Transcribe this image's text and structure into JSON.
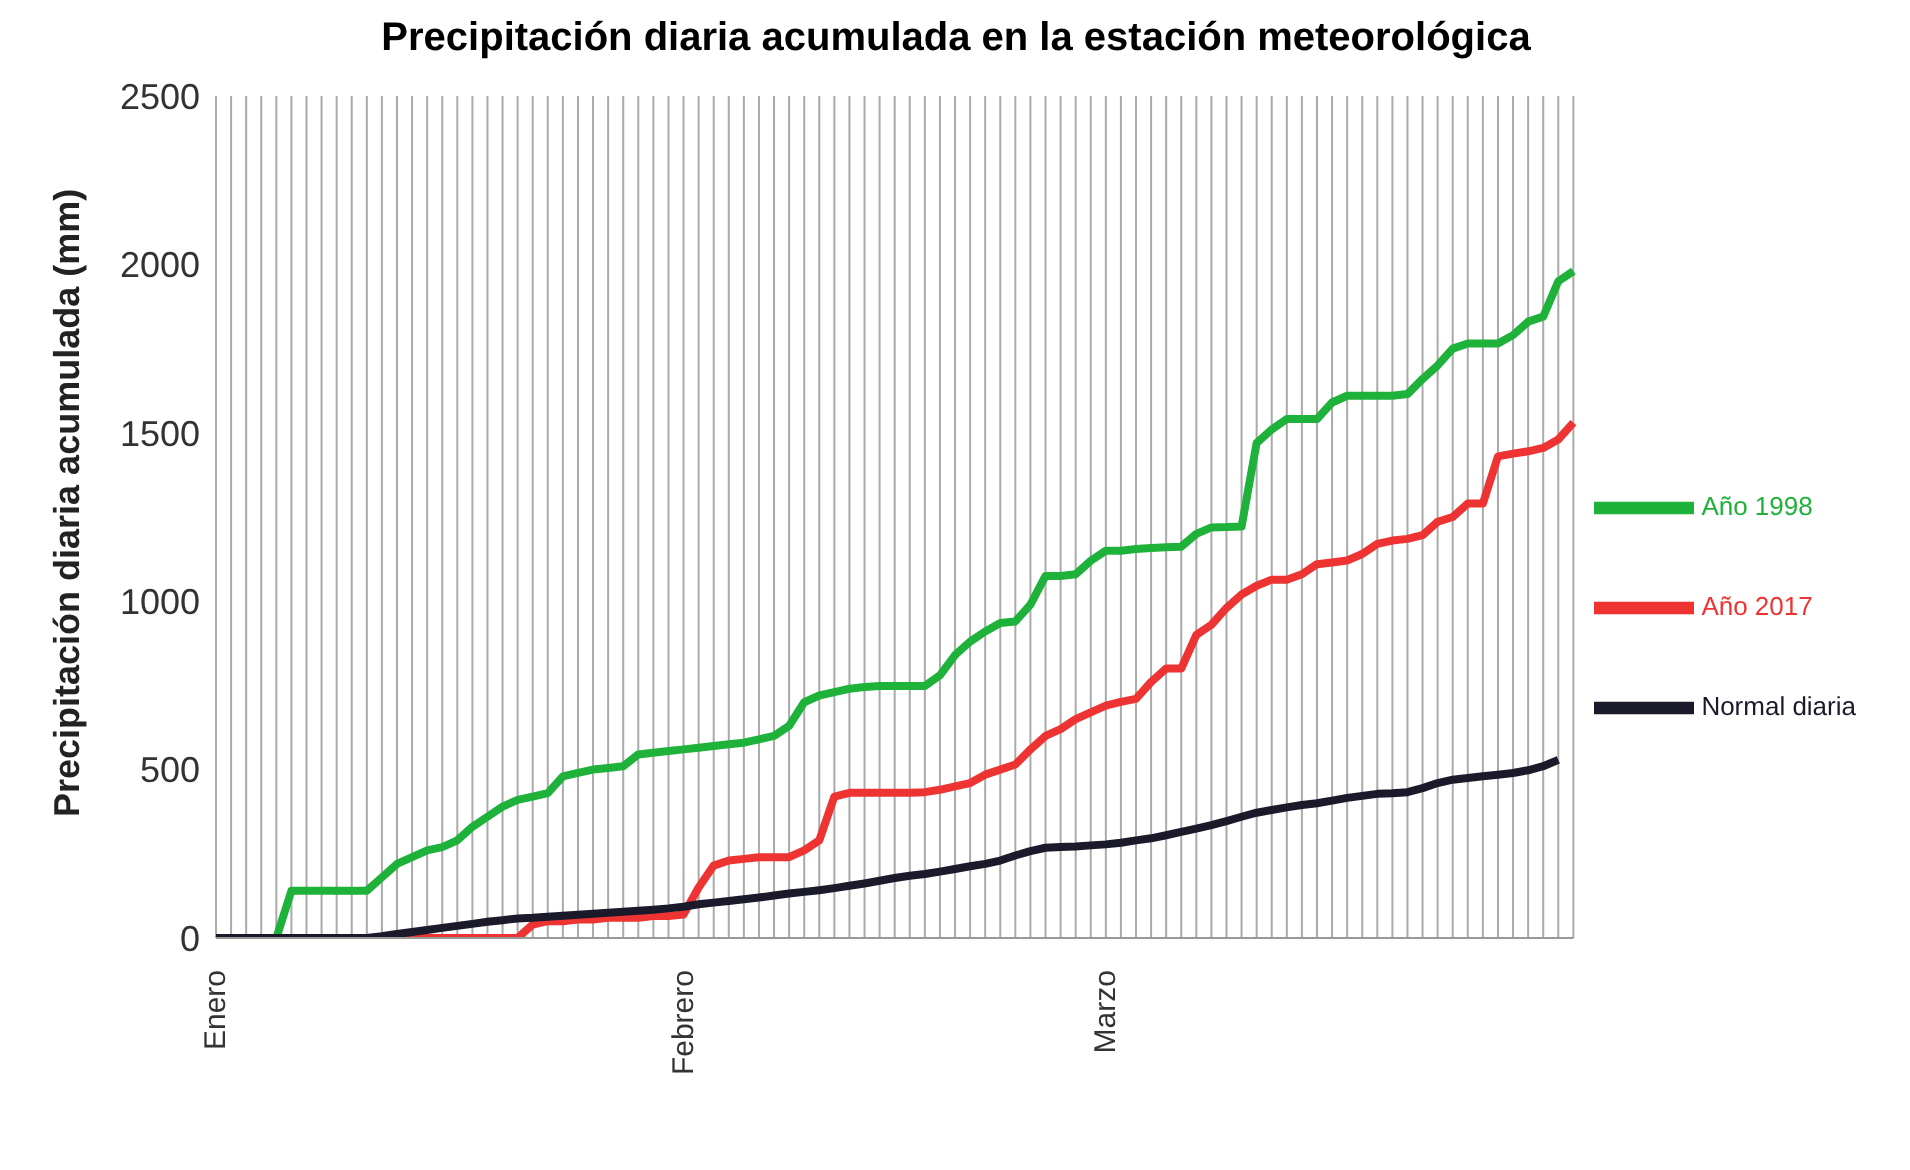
{
  "chart_data": {
    "type": "line",
    "title": "Precipitación diaria acumulada en la estación meteorológica",
    "ylabel": "Precipitación diaria acumulada (mm)",
    "categories": [
      "Enero",
      null,
      null,
      null,
      null,
      null,
      null,
      null,
      null,
      null,
      null,
      null,
      null,
      null,
      null,
      null,
      null,
      null,
      null,
      null,
      null,
      null,
      null,
      null,
      null,
      null,
      null,
      null,
      null,
      null,
      null,
      "Febrero",
      null,
      null,
      null,
      null,
      null,
      null,
      null,
      null,
      null,
      null,
      null,
      null,
      null,
      null,
      null,
      null,
      null,
      null,
      null,
      null,
      null,
      null,
      null,
      null,
      null,
      null,
      null,
      "Marzo",
      null,
      null,
      null,
      null,
      null,
      null,
      null,
      null,
      null,
      null,
      null,
      null,
      null,
      null,
      null,
      null,
      null,
      null,
      null,
      null,
      null,
      null,
      null,
      null,
      null,
      null,
      null,
      null,
      null,
      null,
      null
    ],
    "series": [
      {
        "name": "Año 1998",
        "color": "#1fb23a",
        "values": [
          null,
          null,
          null,
          null,
          0,
          140,
          140,
          140,
          140,
          140,
          140,
          180,
          220,
          240,
          260,
          270,
          290,
          330,
          360,
          390,
          410,
          420,
          430,
          480,
          490,
          500,
          505,
          510,
          545,
          550,
          555,
          560,
          565,
          570,
          575,
          580,
          590,
          600,
          630,
          700,
          720,
          730,
          740,
          745,
          748,
          748,
          748,
          748,
          780,
          840,
          880,
          910,
          935,
          940,
          990,
          1075,
          1075,
          1080,
          1120,
          1150,
          1150,
          1155,
          1158,
          1160,
          1162,
          1200,
          1219,
          1220,
          1222,
          1470,
          1510,
          1541,
          1541,
          1541,
          1590,
          1610,
          1610,
          1610,
          1610,
          1615,
          1660,
          1700,
          1750,
          1765,
          1765,
          1765,
          1790,
          1830,
          1845,
          1950,
          1980
        ]
      },
      {
        "name": "Año 2017",
        "color": "#ee3333",
        "values": [
          null,
          null,
          null,
          null,
          null,
          null,
          null,
          null,
          null,
          null,
          null,
          0,
          0,
          0,
          0,
          0,
          0,
          0,
          0,
          0,
          0,
          40,
          50,
          50,
          55,
          55,
          60,
          60,
          60,
          65,
          65,
          70,
          150,
          215,
          230,
          235,
          240,
          240,
          240,
          260,
          290,
          420,
          431,
          431,
          431,
          431,
          431,
          433,
          440,
          450,
          460,
          485,
          500,
          515,
          560,
          600,
          620,
          650,
          670,
          690,
          701,
          710,
          760,
          800,
          800,
          900,
          930,
          980,
          1020,
          1046,
          1064,
          1064,
          1080,
          1110,
          1115,
          1121,
          1140,
          1170,
          1180,
          1185,
          1196,
          1236,
          1250,
          1290,
          1290,
          1430,
          1438,
          1445,
          1455,
          1480,
          1530
        ]
      },
      {
        "name": "Normal diaria",
        "color": "#1a1a2a",
        "values": [
          0,
          0,
          0,
          0,
          0,
          0,
          0,
          0,
          0,
          0,
          0,
          5,
          12,
          18,
          24,
          30,
          36,
          42,
          48,
          53,
          58,
          60,
          63,
          66,
          69,
          72,
          75,
          78,
          81,
          84,
          88,
          93,
          100,
          105,
          110,
          115,
          120,
          126,
          132,
          137,
          142,
          148,
          155,
          162,
          170,
          178,
          185,
          190,
          197,
          205,
          213,
          220,
          230,
          245,
          258,
          268,
          270,
          272,
          275,
          278,
          283,
          290,
          296,
          305,
          315,
          325,
          335,
          347,
          360,
          372,
          380,
          388,
          395,
          400,
          408,
          416,
          422,
          428,
          430,
          433,
          445,
          460,
          470,
          475,
          480,
          485,
          490,
          498,
          510,
          529,
          null
        ]
      }
    ],
    "ylim": [
      0,
      2500
    ],
    "yticks": [
      0,
      500,
      1000,
      1500,
      2000,
      2500
    ],
    "grid": "x",
    "legend": "right",
    "marker": "none",
    "line_style": "solid"
  }
}
